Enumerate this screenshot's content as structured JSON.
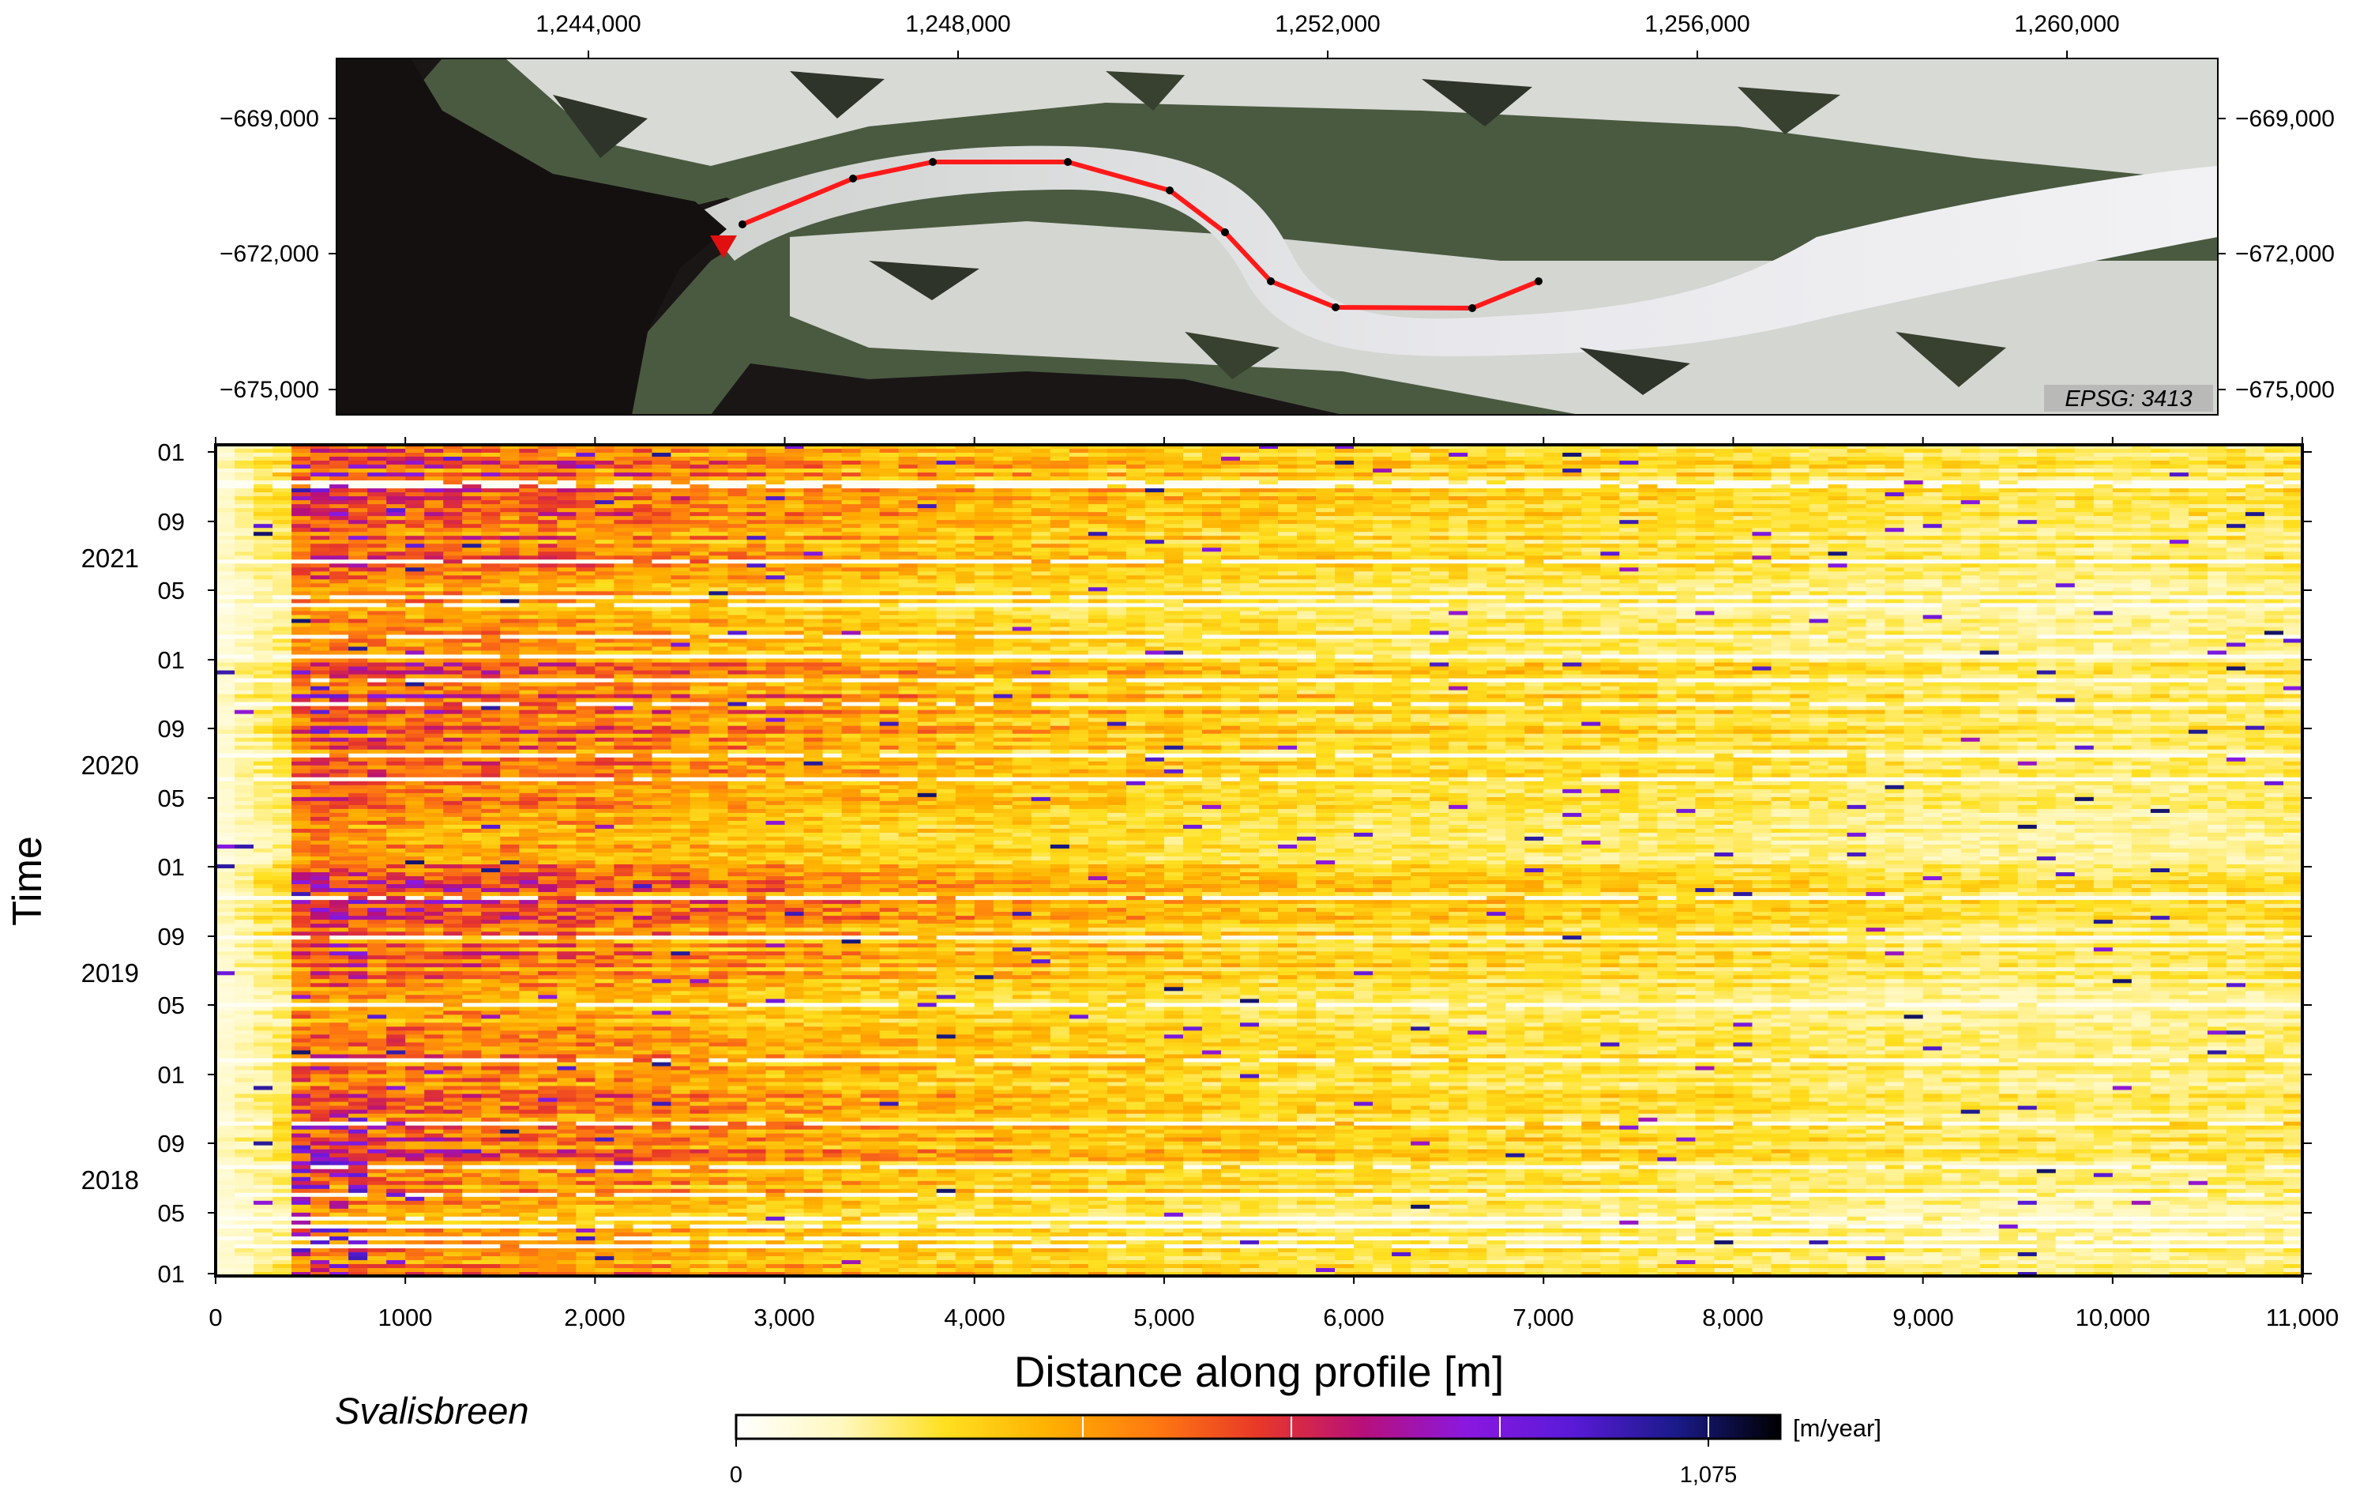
{
  "map": {
    "top_ticks": [
      "1,244,000",
      "1,248,000",
      "1,252,000",
      "1,256,000",
      "1,260,000"
    ],
    "side_ticks": [
      "−669,000",
      "−672,000",
      "−675,000"
    ],
    "epsg_label": "EPSG: 3413",
    "colors": {
      "profile_line": "#ff1a1a",
      "terminus_marker": "#e01010",
      "vertex": "#000000",
      "ocean": "#141010",
      "ice": "#e4e4e8"
    }
  },
  "chart_data": {
    "type": "heatmap",
    "xlabel": "Distance along profile [m]",
    "ylabel": "Time",
    "x_ticks": [
      "0",
      "1000",
      "2,000",
      "3,000",
      "4,000",
      "5,000",
      "6,000",
      "7,000",
      "8,000",
      "9,000",
      "10,000",
      "11,000"
    ],
    "xlim": [
      0,
      11000
    ],
    "ylim": [
      "2017-12-01",
      "2022-01-01"
    ],
    "y_month_ticks": [
      {
        "date": "2022-01",
        "label": "01"
      },
      {
        "date": "2021-09",
        "label": "09"
      },
      {
        "date": "2021-05",
        "label": "05"
      },
      {
        "date": "2021-01",
        "label": "01"
      },
      {
        "date": "2020-09",
        "label": "09"
      },
      {
        "date": "2020-05",
        "label": "05"
      },
      {
        "date": "2020-01",
        "label": "01"
      },
      {
        "date": "2019-09",
        "label": "09"
      },
      {
        "date": "2019-05",
        "label": "05"
      },
      {
        "date": "2019-01",
        "label": "01"
      },
      {
        "date": "2018-09",
        "label": "09"
      },
      {
        "date": "2018-05",
        "label": "05"
      },
      {
        "date": "2018-01",
        "label": "01"
      }
    ],
    "y_year_labels": [
      "2021",
      "2020",
      "2019",
      "2018"
    ],
    "velocity_profile_m_per_year": {
      "distance_m": [
        0,
        500,
        1000,
        2000,
        3000,
        4000,
        5000,
        6000,
        7000,
        8000,
        9000,
        10000,
        11000
      ],
      "typical_speed": [
        150,
        480,
        420,
        380,
        320,
        270,
        240,
        210,
        200,
        190,
        160,
        150,
        170
      ]
    },
    "colorbar": {
      "label": "[m/year]",
      "min": 0,
      "max": 1075,
      "min_label": "0",
      "max_label": "1,075",
      "stops": [
        "#ffffff",
        "#fff8c0",
        "#ffe020",
        "#ffb000",
        "#ff7a10",
        "#e83828",
        "#b8107a",
        "#8a18e0",
        "#5a1ad8",
        "#1a1a8a",
        "#000000"
      ]
    },
    "glacier_name": "Svalisbreen"
  }
}
